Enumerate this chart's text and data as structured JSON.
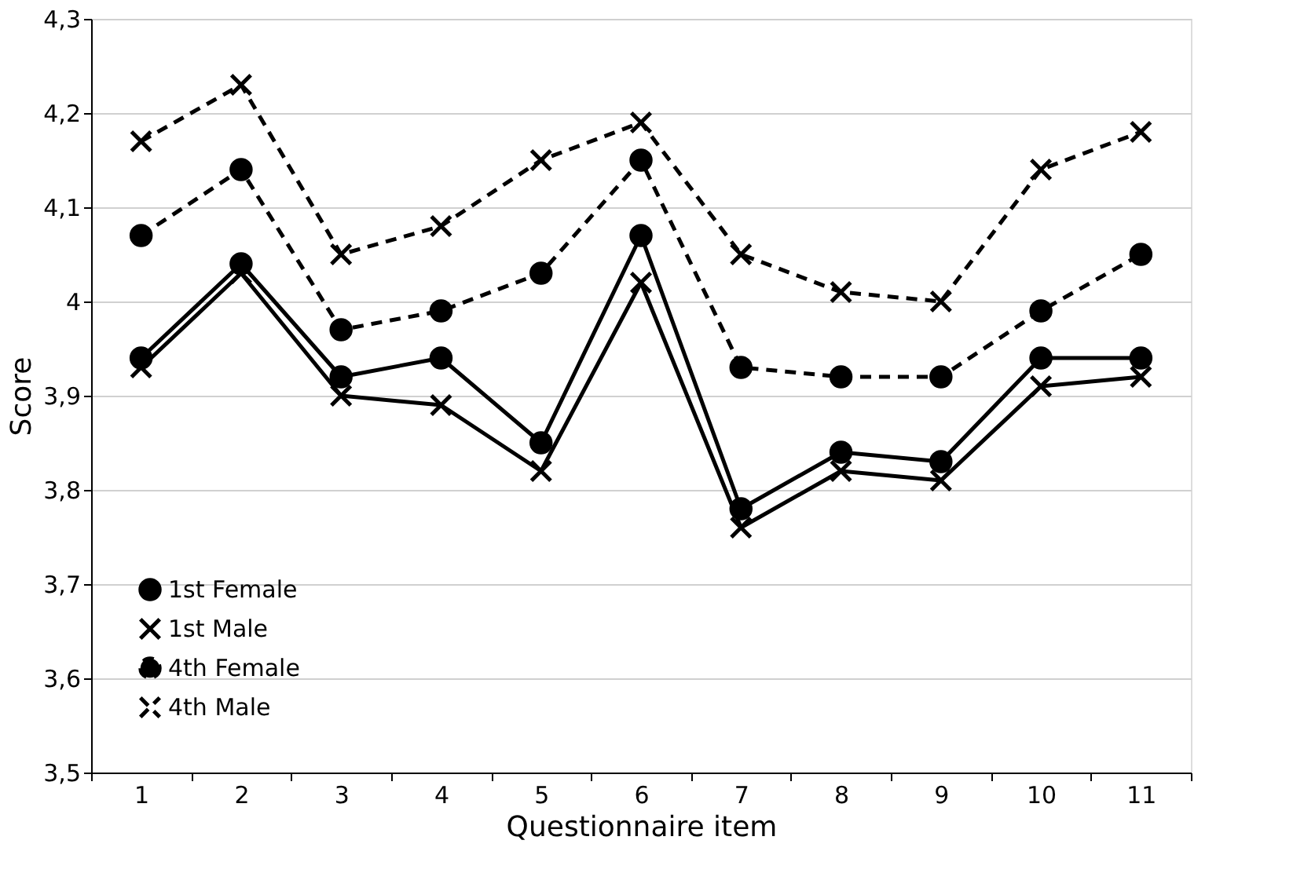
{
  "chart_data": {
    "type": "line",
    "xlabel": "Questionnaire item",
    "ylabel": "Score",
    "categories": [
      "1",
      "2",
      "3",
      "4",
      "5",
      "6",
      "7",
      "8",
      "9",
      "10",
      "11"
    ],
    "series": [
      {
        "name": "1st Female",
        "color": "#000000",
        "marker": "circle",
        "line_style": "solid",
        "values": [
          3.94,
          4.04,
          3.92,
          3.94,
          3.85,
          4.07,
          3.78,
          3.84,
          3.83,
          3.94,
          3.94
        ]
      },
      {
        "name": "1st Male",
        "color": "#000000",
        "marker": "cross",
        "line_style": "solid",
        "values": [
          3.93,
          4.03,
          3.9,
          3.89,
          3.82,
          4.02,
          3.76,
          3.82,
          3.81,
          3.91,
          3.92
        ]
      },
      {
        "name": "4th Female",
        "color": "#000000",
        "marker": "circle",
        "line_style": "dashed",
        "values": [
          4.07,
          4.14,
          3.97,
          3.99,
          4.03,
          4.15,
          3.93,
          3.92,
          3.92,
          3.99,
          4.05
        ]
      },
      {
        "name": "4th Male",
        "color": "#000000",
        "marker": "cross",
        "line_style": "dashed",
        "values": [
          4.17,
          4.23,
          4.05,
          4.08,
          4.15,
          4.19,
          4.05,
          4.01,
          4.0,
          4.14,
          4.18
        ]
      }
    ],
    "ylim": [
      3.5,
      4.3
    ],
    "yticks": [
      {
        "value": 3.5,
        "label": "3,5"
      },
      {
        "value": 3.6,
        "label": "3,6"
      },
      {
        "value": 3.7,
        "label": "3,7"
      },
      {
        "value": 3.8,
        "label": "3,8"
      },
      {
        "value": 3.9,
        "label": "3,9"
      },
      4,
      {
        "value": 4.1,
        "label": "4,1"
      },
      {
        "value": 4.2,
        "label": "4,2"
      },
      {
        "value": 4.3,
        "label": "4,3"
      }
    ],
    "grid": "y",
    "legend": "bottom left"
  }
}
